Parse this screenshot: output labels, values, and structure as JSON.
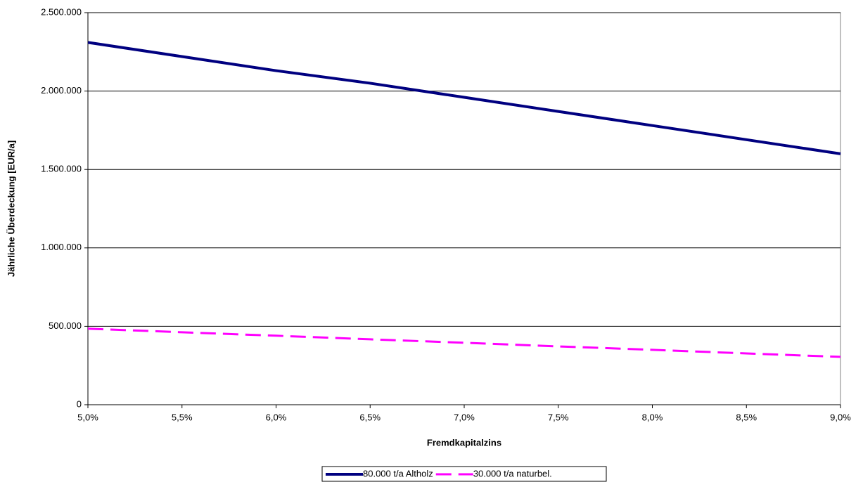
{
  "chart_data": {
    "type": "line",
    "x_label": "Fremdkapitalzins",
    "y_label": "Jährliche Überdeckung [EUR/a]",
    "x": [
      5.0,
      5.5,
      6.0,
      6.5,
      7.0,
      7.5,
      8.0,
      8.5,
      9.0
    ],
    "series": [
      {
        "name": "80.000 t/a Altholz",
        "color": "#000080",
        "dash": "solid",
        "values": [
          2310000,
          2220000,
          2130000,
          2050000,
          1960000,
          1870000,
          1780000,
          1690000,
          1600000
        ]
      },
      {
        "name": "30.000 t/a naturbel.",
        "color": "#ff00ff",
        "dash": "dashed",
        "values": [
          485000,
          462000,
          440000,
          417000,
          395000,
          372000,
          350000,
          327000,
          305000
        ]
      }
    ],
    "xlim": [
      5.0,
      9.0
    ],
    "xticks": [
      {
        "value": 5.0,
        "label": "5,0%"
      },
      {
        "value": 5.5,
        "label": "5,5%"
      },
      {
        "value": 6.0,
        "label": "6,0%"
      },
      {
        "value": 6.5,
        "label": "6,5%"
      },
      {
        "value": 7.0,
        "label": "7,0%"
      },
      {
        "value": 7.5,
        "label": "7,5%"
      },
      {
        "value": 8.0,
        "label": "8,0%"
      },
      {
        "value": 8.5,
        "label": "8,5%"
      },
      {
        "value": 9.0,
        "label": "9,0%"
      }
    ],
    "ylim": [
      0,
      2500000
    ],
    "yticks": [
      0,
      {
        "value": 500000,
        "label": "500.000"
      },
      {
        "value": 1000000,
        "label": "1.000.000"
      },
      {
        "value": 1500000,
        "label": "1.500.000"
      },
      {
        "value": 2000000,
        "label": "2.000.000"
      },
      {
        "value": 2500000,
        "label": "2.500.000"
      }
    ],
    "grid": true,
    "legend_position": "bottom"
  }
}
